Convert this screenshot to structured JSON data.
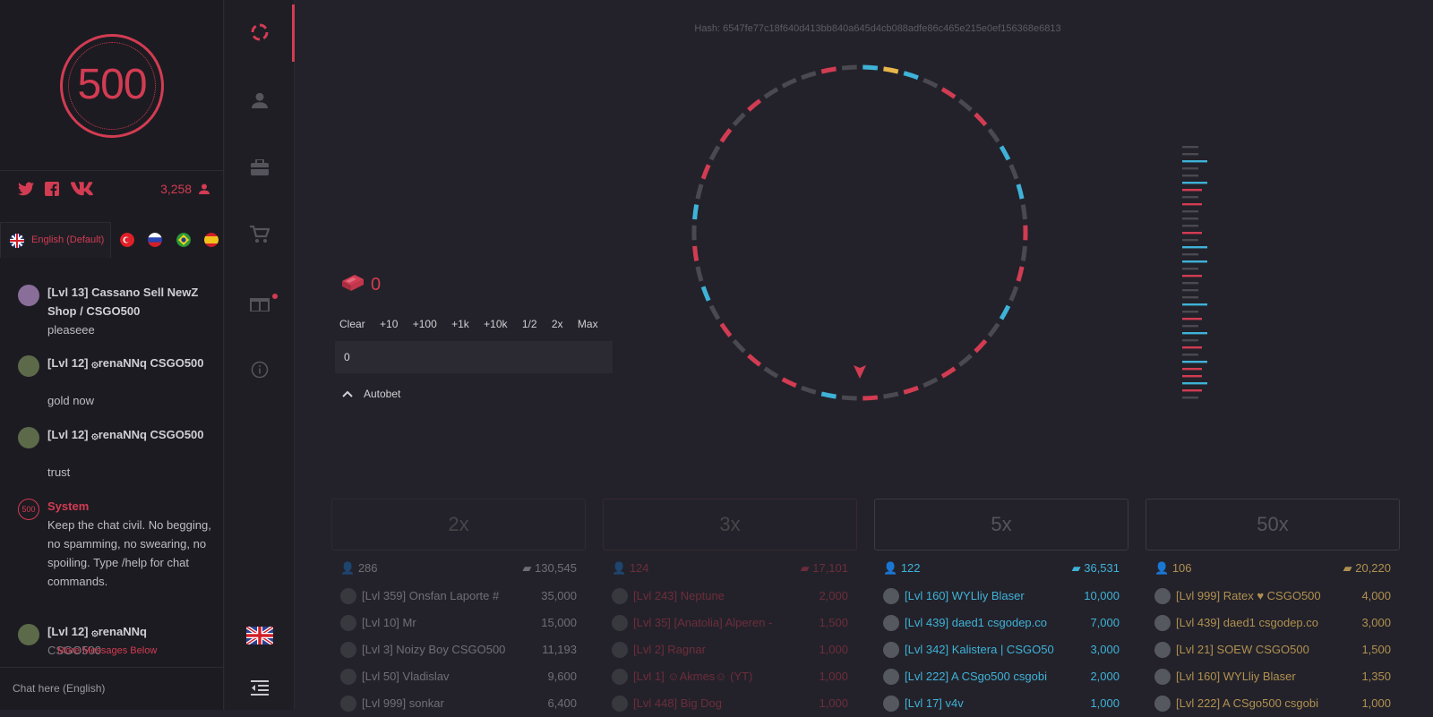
{
  "logo": {
    "text": "500"
  },
  "social": {
    "online_count": "3,258"
  },
  "language": {
    "selected": "English (Default)"
  },
  "chat": {
    "messages": [
      {
        "name": "[Lvl 13] Cassano Sell NewZ Shop / CSGO500",
        "text": "pleaseee"
      },
      {
        "name": "[Lvl 12] ۞renaNNq CSGO500",
        "text": "gold now"
      },
      {
        "name": "[Lvl 12] ۞renaNNq CSGO500",
        "text": "trust"
      },
      {
        "name": "System",
        "text": "Keep the chat civil. No begging, no spamming, no swearing, no spoiling. Type /help for chat commands."
      },
      {
        "name": "[Lvl 12] ۞renaNNq",
        "text": "CSGO500"
      }
    ],
    "more_messages": "More Messages Below",
    "input_placeholder": "Chat here (English)"
  },
  "game": {
    "hash": "Hash: 6547fe77c18f640d413bb840a645d4cb088adfe86c465e215e0ef156368e6813",
    "balance": "0",
    "quick_bets": [
      "Clear",
      "+10",
      "+100",
      "+1k",
      "+10k",
      "1/2",
      "2x",
      "Max"
    ],
    "bet_value": "0",
    "autobet_label": "Autobet"
  },
  "colors": {
    "red": "#d23c52",
    "blue": "#3fb2d8",
    "gold": "#e8b64a",
    "grey": "#4a4950"
  },
  "wheel_segments": [
    "blue",
    "gold",
    "blue",
    "grey",
    "red",
    "grey",
    "red",
    "grey",
    "blue",
    "grey",
    "blue",
    "grey",
    "red",
    "grey",
    "red",
    "grey",
    "blue",
    "grey",
    "red",
    "grey",
    "red",
    "grey",
    "red",
    "grey",
    "red",
    "grey",
    "blue",
    "grey",
    "red",
    "grey",
    "red",
    "grey",
    "red",
    "grey",
    "blue",
    "grey",
    "red",
    "grey",
    "blue",
    "grey",
    "red",
    "grey",
    "red",
    "grey",
    "red",
    "grey",
    "grey",
    "grey",
    "red",
    "grey"
  ],
  "history": [
    "grey",
    "grey",
    "blue",
    "grey",
    "grey",
    "blue",
    "red",
    "grey",
    "red",
    "grey",
    "grey",
    "grey",
    "red",
    "grey",
    "blue",
    "grey",
    "blue",
    "grey",
    "red",
    "grey",
    "grey",
    "grey",
    "blue",
    "grey",
    "red",
    "grey",
    "blue",
    "grey",
    "red",
    "grey",
    "blue",
    "red",
    "red",
    "blue",
    "red",
    "grey"
  ],
  "columns": [
    {
      "mult": "2x",
      "players": "286",
      "total": "130,545",
      "rows": [
        {
          "name": "[Lvl 359] Onsfan Laporte #",
          "value": "35,000"
        },
        {
          "name": "[Lvl 10] Mr",
          "value": "15,000"
        },
        {
          "name": "[Lvl 3] Noizy Boy CSGO500",
          "value": "11,193"
        },
        {
          "name": "[Lvl 50] Vladislav",
          "value": "9,600"
        },
        {
          "name": "[Lvl 999] sonkar",
          "value": "6,400"
        }
      ]
    },
    {
      "mult": "3x",
      "players": "124",
      "total": "17,101",
      "rows": [
        {
          "name": "[Lvl 243] Neptune",
          "value": "2,000"
        },
        {
          "name": "[Lvl 35] [Anatolia] Alperen -",
          "value": "1,500"
        },
        {
          "name": "[Lvl 2] Ragnar",
          "value": "1,000"
        },
        {
          "name": "[Lvl 1] ☺Akmes☺ (YT)",
          "value": "1,000"
        },
        {
          "name": "[Lvl 448] Big Dog",
          "value": "1,000"
        }
      ]
    },
    {
      "mult": "5x",
      "players": "122",
      "total": "36,531",
      "rows": [
        {
          "name": "[Lvl 160] WYLliy Blaser",
          "value": "10,000"
        },
        {
          "name": "[Lvl 439] daed1 csgodep.co",
          "value": "7,000"
        },
        {
          "name": "[Lvl 342] Kalistera | CSGO50",
          "value": "3,000"
        },
        {
          "name": "[Lvl 222] A CSgo500 csgobi",
          "value": "2,000"
        },
        {
          "name": "[Lvl 17] v4v",
          "value": "1,000"
        }
      ]
    },
    {
      "mult": "50x",
      "players": "106",
      "total": "20,220",
      "rows": [
        {
          "name": "[Lvl 999] Ratex ♥ CSGO500",
          "value": "4,000"
        },
        {
          "name": "[Lvl 439] daed1 csgodep.co",
          "value": "3,000"
        },
        {
          "name": "[Lvl 21] SOEW CSGO500",
          "value": "1,500"
        },
        {
          "name": "[Lvl 160] WYLliy Blaser",
          "value": "1,350"
        },
        {
          "name": "[Lvl 222] A CSgo500 csgobi",
          "value": "1,000"
        }
      ]
    }
  ]
}
